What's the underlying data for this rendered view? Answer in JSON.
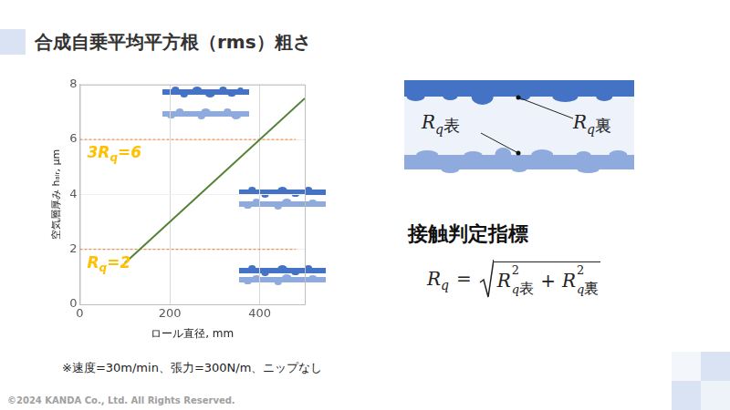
{
  "title": "合成自乗平均平方根（rms）粗さ",
  "chart_data": {
    "type": "line",
    "x_label": "ロール直径, mm",
    "y_label": "空気層厚み hₐᵢᵣ, μm",
    "xlim": [
      0,
      500
    ],
    "xticks": [
      0,
      200,
      400
    ],
    "ylim": [
      0,
      8
    ],
    "yticks": [
      0,
      2,
      4,
      6,
      8
    ],
    "grid": true,
    "series": [
      {
        "x": [
          100,
          500
        ],
        "values": [
          1.5,
          7.5
        ],
        "color": "#548235",
        "line_style": "solid"
      },
      {
        "x": [
          0,
          480
        ],
        "values": [
          2,
          2
        ],
        "color": "#ed7d31",
        "line_style": "dashed",
        "annotation": "Rq=2"
      },
      {
        "x": [
          0,
          480
        ],
        "values": [
          6,
          6
        ],
        "color": "#ed7d31",
        "line_style": "dashed",
        "annotation": "3Rq=6"
      }
    ],
    "note": "※速度=30m/min、張力=300N/m、ニップなし"
  },
  "diagram": {
    "labels": [
      {
        "symbol": "R",
        "sub": "q",
        "face": "表"
      },
      {
        "symbol": "R",
        "sub": "q",
        "face": "裏"
      }
    ],
    "heading": "接触判定指標",
    "formula": {
      "symbol": "R",
      "sub": "q",
      "equals": "=",
      "power": 2,
      "operator": "+",
      "faces": [
        "表",
        "裏"
      ]
    }
  },
  "footer": "©2024 KANDA Co., Ltd. All Rights Reserved."
}
